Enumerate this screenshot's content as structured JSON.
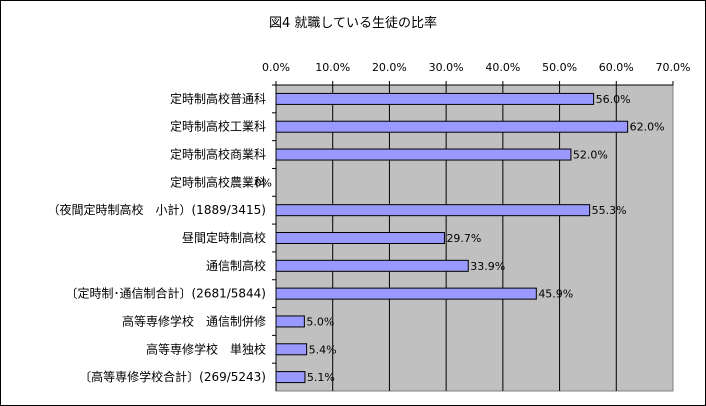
{
  "chart_data": {
    "type": "bar",
    "orientation": "horizontal",
    "title": "図4 就職している生徒の比率",
    "xlabel": "",
    "ylabel": "",
    "xlim": [
      0,
      70
    ],
    "tick_values": [
      0,
      10,
      20,
      30,
      40,
      50,
      60,
      70
    ],
    "tick_labels": [
      "0.0%",
      "10.0%",
      "20.0%",
      "30.0%",
      "40.0%",
      "50.0%",
      "60.0%",
      "70.0%"
    ],
    "axis_position": "top",
    "grid": true,
    "legend": "none",
    "bar_color": "#9999ff",
    "plot_background": "#c0c0c0",
    "categories": [
      "定時制高校普通科",
      "定時制高校工業科",
      "定時制高校商業科",
      "定時制高校農業科",
      "（夜間定時制高校　小計）(1889/3415)",
      "昼間定時制高校",
      "通信制高校",
      "〔定時制･通信制合計〕(2681/5844)",
      "高等専修学校　通信制併修",
      "高等専修学校　単独校",
      "〔高等専修学校合計〕(269/5243)"
    ],
    "values": [
      56.0,
      62.0,
      52.0,
      0,
      55.3,
      29.7,
      33.9,
      45.9,
      5.0,
      5.4,
      5.1
    ],
    "value_labels": [
      "56.0%",
      "62.0%",
      "52.0%",
      "0%",
      "55.3%",
      "29.7%",
      "33.9%",
      "45.9%",
      "5.0%",
      "5.4%",
      "5.1%"
    ]
  }
}
